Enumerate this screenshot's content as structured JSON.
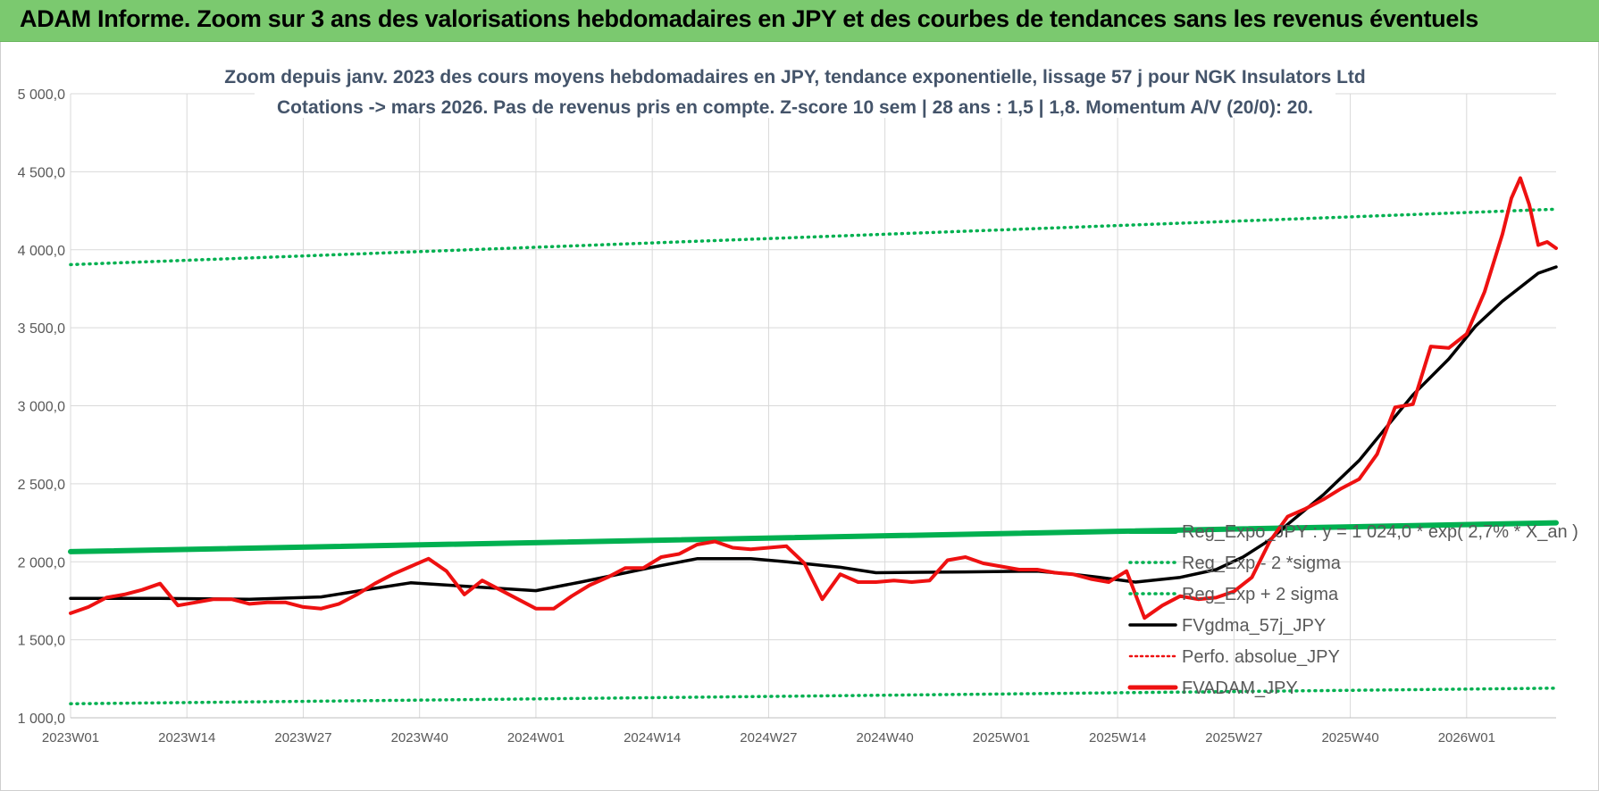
{
  "banner": {
    "title": "ADAM Informe. Zoom sur 3 ans des valorisations hebdomadaires en JPY et des courbes de tendances sans les revenus éventuels"
  },
  "colors": {
    "banner": "#7bc96f",
    "red": "#ee1111",
    "black": "#000000",
    "green": "#00b050",
    "grid": "#d9d9d9",
    "title": "#44546a"
  },
  "chart_data": {
    "type": "line",
    "title_line1": "Zoom depuis janv. 2023 des cours moyens hebdomadaires en JPY, tendance exponentielle, lissage 57 j pour NGK Insulators Ltd",
    "title_line2": "Cotations -> mars 2026. Pas de revenus pris en compte. Z-score 10 sem | 28 ans : 1,5 | 1,8. Momentum A/V (20/0): 20.",
    "ylim": [
      1000,
      5000
    ],
    "yticks": [
      "1 000,0",
      "1 500,0",
      "2 000,0",
      "2 500,0",
      "3 000,0",
      "3 500,0",
      "4 000,0",
      "4 500,0",
      "5 000,0"
    ],
    "x_count": 167,
    "xtick_labels": [
      "2023W01",
      "2023W14",
      "2023W27",
      "2023W40",
      "2024W01",
      "2024W14",
      "2024W27",
      "2024W40",
      "2025W01",
      "2025W14",
      "2025W27",
      "2025W40",
      "2026W01"
    ],
    "xtick_index": [
      0,
      13,
      26,
      39,
      52,
      65,
      78,
      91,
      104,
      117,
      130,
      143,
      156
    ],
    "legend": [
      {
        "label": "Reg_Expo_JPY : y = 1 024,0 * exp( 2,7% * X_an )",
        "style": "solid-thick-green"
      },
      {
        "label": "Reg_Exp - 2 *sigma",
        "style": "dotted-green"
      },
      {
        "label": "Reg_Exp + 2 sigma",
        "style": "dotted-green"
      },
      {
        "label": "FVgdma_57j_JPY",
        "style": "solid-black"
      },
      {
        "label": "Perfo. absolue_JPY",
        "style": "dotted-red"
      },
      {
        "label": "FVADAM_JPY",
        "style": "solid-thick-red"
      }
    ],
    "series": [
      {
        "name": "Reg_Expo_JPY",
        "x": [
          0,
          166
        ],
        "values": [
          2065,
          2250
        ]
      },
      {
        "name": "Reg_Exp - 2 *sigma",
        "x": [
          0,
          166
        ],
        "values": [
          1090,
          1190
        ]
      },
      {
        "name": "Reg_Exp + 2 sigma",
        "x": [
          0,
          166
        ],
        "values": [
          3905,
          4260
        ]
      },
      {
        "name": "FVgdma_57j_JPY",
        "x": [
          0,
          10,
          20,
          28,
          34,
          38,
          45,
          52,
          57,
          65,
          70,
          76,
          80,
          86,
          90,
          100,
          108,
          112,
          115,
          119,
          124,
          128,
          131,
          134,
          136,
          140,
          144,
          146,
          150,
          154,
          157,
          160,
          162,
          164,
          166
        ],
        "values": [
          1765,
          1765,
          1760,
          1775,
          1830,
          1865,
          1840,
          1815,
          1870,
          1965,
          2020,
          2020,
          2000,
          1965,
          1930,
          1935,
          1940,
          1920,
          1900,
          1870,
          1900,
          1950,
          2030,
          2140,
          2240,
          2430,
          2650,
          2790,
          3070,
          3300,
          3510,
          3670,
          3760,
          3850,
          3890
        ]
      },
      {
        "name": "FVADAM_JPY",
        "x": [
          0,
          2,
          4,
          6,
          8,
          10,
          12,
          14,
          16,
          18,
          20,
          22,
          24,
          26,
          28,
          30,
          32,
          34,
          36,
          38,
          40,
          42,
          44,
          46,
          48,
          50,
          52,
          54,
          56,
          58,
          60,
          62,
          64,
          66,
          68,
          70,
          72,
          74,
          76,
          78,
          80,
          82,
          84,
          86,
          88,
          90,
          92,
          94,
          96,
          98,
          100,
          102,
          104,
          106,
          108,
          110,
          112,
          114,
          116,
          118,
          120,
          122,
          124,
          126,
          128,
          130,
          132,
          134,
          136,
          138,
          140,
          142,
          144,
          146,
          148,
          150,
          152,
          154,
          156,
          158,
          160,
          161,
          162,
          163,
          164,
          165,
          166
        ],
        "values": [
          1670,
          1710,
          1770,
          1790,
          1820,
          1860,
          1720,
          1740,
          1760,
          1760,
          1730,
          1740,
          1740,
          1710,
          1700,
          1730,
          1790,
          1860,
          1920,
          1970,
          2020,
          1940,
          1790,
          1880,
          1820,
          1760,
          1700,
          1700,
          1780,
          1850,
          1900,
          1960,
          1960,
          2030,
          2050,
          2110,
          2130,
          2090,
          2080,
          2090,
          2100,
          1990,
          1760,
          1920,
          1870,
          1870,
          1880,
          1870,
          1880,
          2010,
          2030,
          1990,
          1970,
          1950,
          1950,
          1930,
          1920,
          1890,
          1870,
          1940,
          1640,
          1720,
          1780,
          1760,
          1770,
          1810,
          1900,
          2130,
          2290,
          2340,
          2400,
          2470,
          2530,
          2690,
          2990,
          3010,
          3380,
          3370,
          3460,
          3730,
          4100,
          4330,
          4460,
          4290,
          4030,
          4050,
          4010
        ]
      }
    ]
  }
}
